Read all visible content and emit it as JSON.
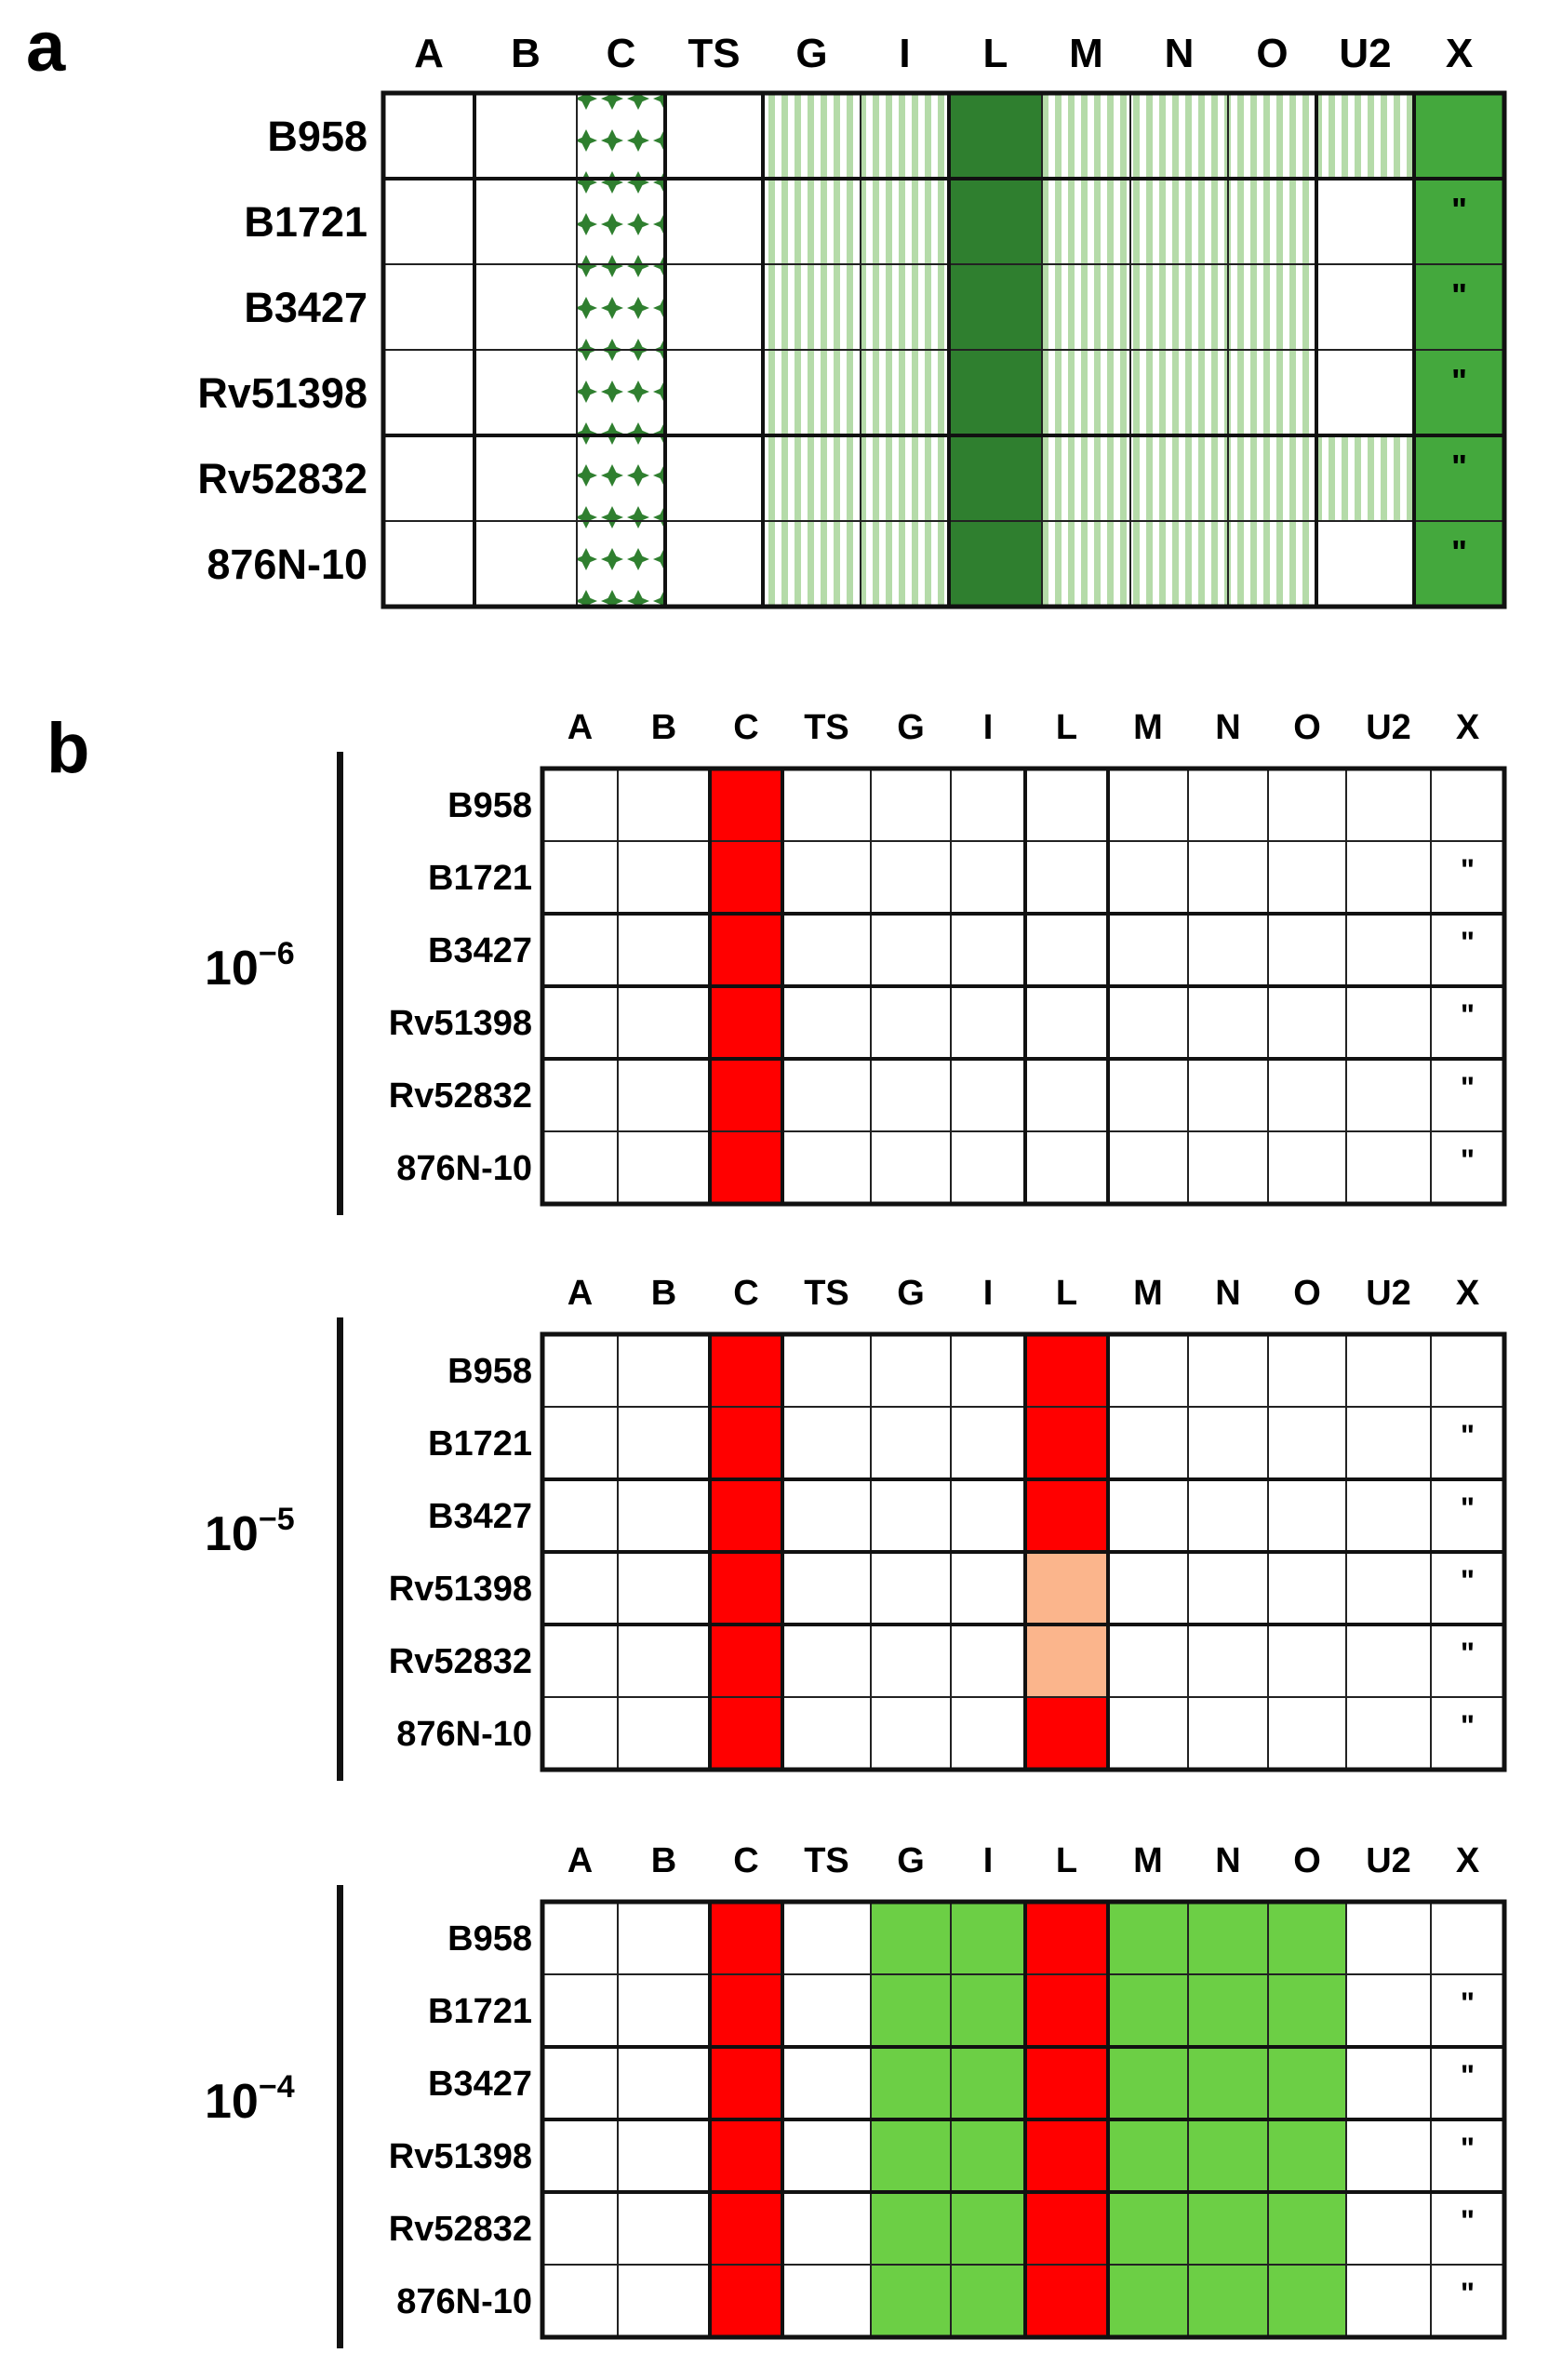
{
  "columns": [
    "A",
    "B",
    "C",
    "TS",
    "G",
    "I",
    "L",
    "M",
    "N",
    "O",
    "U2",
    "X"
  ],
  "rows": [
    "B958",
    "B1721",
    "B3427",
    "Rv51398",
    "Rv52832",
    "876N-10"
  ],
  "ditto_mark": "\"",
  "colors": {
    "dark_green": "#2f7f2f",
    "medium_green": "#44a83d",
    "pale_green_stripe": "#b5dba9",
    "bright_green": "#6ccf45",
    "red": "#ff0000",
    "peach": "#fbb58c"
  },
  "panel_a": {
    "label": "a",
    "fills": [
      [
        "none",
        "none",
        "dots",
        "none",
        "stripe",
        "stripe",
        "dark",
        "stripe",
        "stripe",
        "stripe",
        "stripe",
        "medium"
      ],
      [
        "none",
        "none",
        "dots",
        "none",
        "stripe",
        "stripe",
        "dark",
        "stripe",
        "stripe",
        "stripe",
        "none",
        "medium"
      ],
      [
        "none",
        "none",
        "dots",
        "none",
        "stripe",
        "stripe",
        "dark",
        "stripe",
        "stripe",
        "stripe",
        "none",
        "medium"
      ],
      [
        "none",
        "none",
        "dots",
        "none",
        "stripe",
        "stripe",
        "dark",
        "stripe",
        "stripe",
        "stripe",
        "none",
        "medium"
      ],
      [
        "none",
        "none",
        "dots",
        "none",
        "stripe",
        "stripe",
        "dark",
        "stripe",
        "stripe",
        "stripe",
        "stripe",
        "medium"
      ],
      [
        "none",
        "none",
        "dots",
        "none",
        "stripe",
        "stripe",
        "dark",
        "stripe",
        "stripe",
        "stripe",
        "none",
        "medium"
      ]
    ],
    "ditto_rows": [
      1,
      2,
      3,
      4,
      5
    ]
  },
  "panel_b": {
    "label": "b",
    "blocks": [
      {
        "dilution_base": "10",
        "dilution_exp": "−6",
        "fills": [
          [
            "none",
            "none",
            "red",
            "none",
            "none",
            "none",
            "none",
            "none",
            "none",
            "none",
            "none",
            "none"
          ],
          [
            "none",
            "none",
            "red",
            "none",
            "none",
            "none",
            "none",
            "none",
            "none",
            "none",
            "none",
            "none"
          ],
          [
            "none",
            "none",
            "red",
            "none",
            "none",
            "none",
            "none",
            "none",
            "none",
            "none",
            "none",
            "none"
          ],
          [
            "none",
            "none",
            "red",
            "none",
            "none",
            "none",
            "none",
            "none",
            "none",
            "none",
            "none",
            "none"
          ],
          [
            "none",
            "none",
            "red",
            "none",
            "none",
            "none",
            "none",
            "none",
            "none",
            "none",
            "none",
            "none"
          ],
          [
            "none",
            "none",
            "red",
            "none",
            "none",
            "none",
            "none",
            "none",
            "none",
            "none",
            "none",
            "none"
          ]
        ],
        "ditto_rows": [
          1,
          2,
          3,
          4,
          5
        ]
      },
      {
        "dilution_base": "10",
        "dilution_exp": "−5",
        "fills": [
          [
            "none",
            "none",
            "red",
            "none",
            "none",
            "none",
            "red",
            "none",
            "none",
            "none",
            "none",
            "none"
          ],
          [
            "none",
            "none",
            "red",
            "none",
            "none",
            "none",
            "red",
            "none",
            "none",
            "none",
            "none",
            "none"
          ],
          [
            "none",
            "none",
            "red",
            "none",
            "none",
            "none",
            "red",
            "none",
            "none",
            "none",
            "none",
            "none"
          ],
          [
            "none",
            "none",
            "red",
            "none",
            "none",
            "none",
            "peach",
            "none",
            "none",
            "none",
            "none",
            "none"
          ],
          [
            "none",
            "none",
            "red",
            "none",
            "none",
            "none",
            "peach",
            "none",
            "none",
            "none",
            "none",
            "none"
          ],
          [
            "none",
            "none",
            "red",
            "none",
            "none",
            "none",
            "red",
            "none",
            "none",
            "none",
            "none",
            "none"
          ]
        ],
        "ditto_rows": [
          1,
          2,
          3,
          4,
          5
        ]
      },
      {
        "dilution_base": "10",
        "dilution_exp": "−4",
        "fills": [
          [
            "none",
            "none",
            "red",
            "none",
            "green",
            "green",
            "red",
            "green",
            "green",
            "green",
            "none",
            "none"
          ],
          [
            "none",
            "none",
            "red",
            "none",
            "green",
            "green",
            "red",
            "green",
            "green",
            "green",
            "none",
            "none"
          ],
          [
            "none",
            "none",
            "red",
            "none",
            "green",
            "green",
            "red",
            "green",
            "green",
            "green",
            "none",
            "none"
          ],
          [
            "none",
            "none",
            "red",
            "none",
            "green",
            "green",
            "red",
            "green",
            "green",
            "green",
            "none",
            "none"
          ],
          [
            "none",
            "none",
            "red",
            "none",
            "green",
            "green",
            "red",
            "green",
            "green",
            "green",
            "none",
            "none"
          ],
          [
            "none",
            "none",
            "red",
            "none",
            "green",
            "green",
            "red",
            "green",
            "green",
            "green",
            "none",
            "none"
          ]
        ],
        "ditto_rows": [
          1,
          2,
          3,
          4,
          5
        ]
      }
    ]
  }
}
